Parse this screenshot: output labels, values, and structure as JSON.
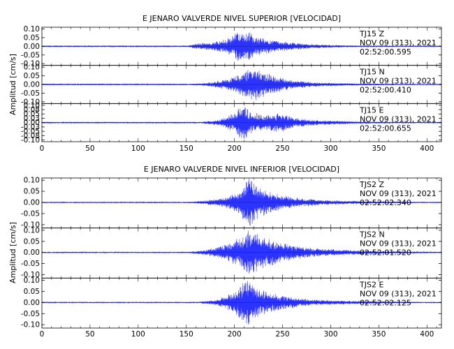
{
  "figure": {
    "colors": {
      "trace": "#2a33ff",
      "zero": "#000000",
      "frame": "#000000"
    }
  },
  "chart_data": [
    {
      "type": "line",
      "title": "E JENARO VALVERDE NIVEL SUPERIOR [VELOCIDAD]",
      "ylabel": "Amplitud [cm/s]",
      "xlabel": "",
      "xlim": [
        0,
        415
      ],
      "x_ticks": [
        0,
        50,
        100,
        150,
        200,
        250,
        300,
        350,
        400
      ],
      "x_tick_labels": [
        "0",
        "50",
        "100",
        "150",
        "200",
        "250",
        "300",
        "350",
        "400"
      ],
      "grid": false,
      "traces": [
        {
          "annotation": [
            "TJ15   Z",
            "NOV 09 (313), 2021",
            "02:52:00.595"
          ],
          "ylim": [
            -0.11,
            0.11
          ],
          "y_ticks": [
            0.1,
            0.05,
            0.0,
            -0.05,
            -0.1
          ],
          "y_tick_labels": [
            "0.10",
            "0.05",
            "0.00",
            "-0.05",
            "-0.10"
          ],
          "envelope": [
            {
              "t": 0,
              "a": 0.002
            },
            {
              "t": 150,
              "a": 0.002
            },
            {
              "t": 158,
              "a": 0.012
            },
            {
              "t": 175,
              "a": 0.022
            },
            {
              "t": 190,
              "a": 0.035
            },
            {
              "t": 200,
              "a": 0.06
            },
            {
              "t": 205,
              "a": 0.095
            },
            {
              "t": 210,
              "a": 0.06
            },
            {
              "t": 215,
              "a": 0.085
            },
            {
              "t": 220,
              "a": 0.05
            },
            {
              "t": 230,
              "a": 0.04
            },
            {
              "t": 250,
              "a": 0.025
            },
            {
              "t": 275,
              "a": 0.012
            },
            {
              "t": 320,
              "a": 0.005
            },
            {
              "t": 415,
              "a": 0.002
            }
          ]
        },
        {
          "annotation": [
            "TJ15   N",
            "NOV 09 (313), 2021",
            "02:52:00.410"
          ],
          "ylim": [
            -0.11,
            0.11
          ],
          "y_ticks": [
            0.1,
            0.05,
            0.0,
            -0.05,
            -0.1
          ],
          "y_tick_labels": [
            "0.10",
            "0.05",
            "0.00",
            "-0.05",
            "-0.10"
          ],
          "envelope": [
            {
              "t": 0,
              "a": 0.002
            },
            {
              "t": 150,
              "a": 0.002
            },
            {
              "t": 170,
              "a": 0.008
            },
            {
              "t": 195,
              "a": 0.03
            },
            {
              "t": 210,
              "a": 0.07
            },
            {
              "t": 220,
              "a": 0.085
            },
            {
              "t": 230,
              "a": 0.07
            },
            {
              "t": 245,
              "a": 0.04
            },
            {
              "t": 260,
              "a": 0.025
            },
            {
              "t": 280,
              "a": 0.012
            },
            {
              "t": 320,
              "a": 0.006
            },
            {
              "t": 415,
              "a": 0.002
            }
          ]
        },
        {
          "annotation": [
            "TJ15   E",
            "NOV 09 (313), 2021",
            "02:52:00.655"
          ],
          "ylim": [
            -0.11,
            0.11
          ],
          "y_ticks": [
            0.1,
            0.075,
            0.05,
            0.025,
            0.0,
            -0.025,
            -0.05,
            -0.075,
            -0.1
          ],
          "y_tick_labels": [
            "0.10",
            "0.08",
            "0.05",
            "0.03",
            "0.00",
            "-0.03",
            "-0.05",
            "-0.08",
            "-0.10"
          ],
          "envelope": [
            {
              "t": 0,
              "a": 0.002
            },
            {
              "t": 160,
              "a": 0.002
            },
            {
              "t": 185,
              "a": 0.015
            },
            {
              "t": 200,
              "a": 0.05
            },
            {
              "t": 210,
              "a": 0.1
            },
            {
              "t": 215,
              "a": 0.06
            },
            {
              "t": 230,
              "a": 0.04
            },
            {
              "t": 250,
              "a": 0.05
            },
            {
              "t": 260,
              "a": 0.03
            },
            {
              "t": 280,
              "a": 0.015
            },
            {
              "t": 330,
              "a": 0.006
            },
            {
              "t": 415,
              "a": 0.002
            }
          ]
        }
      ]
    },
    {
      "type": "line",
      "title": "E JENARO VALVERDE NIVEL INFERIOR [VELOCIDAD]",
      "ylabel": "Amplitud [cm/s]",
      "xlabel": "",
      "xlim": [
        0,
        415
      ],
      "x_ticks": [
        0,
        50,
        100,
        150,
        200,
        250,
        300,
        350,
        400
      ],
      "x_tick_labels": [
        "0",
        "50",
        "100",
        "150",
        "200",
        "250",
        "300",
        "350",
        "400"
      ],
      "grid": false,
      "traces": [
        {
          "annotation": [
            "TJS2   Z",
            "NOV 09 (313), 2021",
            "02:52:02.340"
          ],
          "ylim": [
            -0.115,
            0.11
          ],
          "y_ticks": [
            0.1,
            0.05,
            0.0,
            -0.05,
            -0.1
          ],
          "y_tick_labels": [
            "0.10",
            "0.05",
            "0.00",
            "-0.05",
            "-0.10"
          ],
          "envelope": [
            {
              "t": 0,
              "a": 0.002
            },
            {
              "t": 150,
              "a": 0.002
            },
            {
              "t": 170,
              "a": 0.008
            },
            {
              "t": 190,
              "a": 0.02
            },
            {
              "t": 205,
              "a": 0.05
            },
            {
              "t": 215,
              "a": 0.1
            },
            {
              "t": 225,
              "a": 0.06
            },
            {
              "t": 240,
              "a": 0.04
            },
            {
              "t": 260,
              "a": 0.022
            },
            {
              "t": 290,
              "a": 0.01
            },
            {
              "t": 340,
              "a": 0.005
            },
            {
              "t": 415,
              "a": 0.002
            }
          ]
        },
        {
          "annotation": [
            "TJS2   N",
            "NOV 09 (313), 2021",
            "02:52:01.520"
          ],
          "ylim": [
            -0.115,
            0.11
          ],
          "y_ticks": [
            0.1,
            0.05,
            0.0,
            -0.05,
            -0.1
          ],
          "y_tick_labels": [
            "0.10",
            "0.05",
            "0.00",
            "-0.05",
            "-0.10"
          ],
          "envelope": [
            {
              "t": 0,
              "a": 0.002
            },
            {
              "t": 150,
              "a": 0.002
            },
            {
              "t": 170,
              "a": 0.01
            },
            {
              "t": 190,
              "a": 0.03
            },
            {
              "t": 205,
              "a": 0.06
            },
            {
              "t": 215,
              "a": 0.1
            },
            {
              "t": 225,
              "a": 0.07
            },
            {
              "t": 240,
              "a": 0.05
            },
            {
              "t": 260,
              "a": 0.03
            },
            {
              "t": 290,
              "a": 0.015
            },
            {
              "t": 340,
              "a": 0.007
            },
            {
              "t": 415,
              "a": 0.003
            }
          ]
        },
        {
          "annotation": [
            "TJS2   E",
            "NOV 09 (313), 2021",
            "02:52:02.125"
          ],
          "ylim": [
            -0.115,
            0.11
          ],
          "y_ticks": [
            0.1,
            0.05,
            0.0,
            -0.05,
            -0.1
          ],
          "y_tick_labels": [
            "0.10",
            "0.05",
            "0.00",
            "-0.05",
            "-0.10"
          ],
          "envelope": [
            {
              "t": 0,
              "a": 0.002
            },
            {
              "t": 160,
              "a": 0.002
            },
            {
              "t": 180,
              "a": 0.01
            },
            {
              "t": 200,
              "a": 0.04
            },
            {
              "t": 212,
              "a": 0.1
            },
            {
              "t": 220,
              "a": 0.07
            },
            {
              "t": 235,
              "a": 0.04
            },
            {
              "t": 255,
              "a": 0.025
            },
            {
              "t": 280,
              "a": 0.012
            },
            {
              "t": 330,
              "a": 0.006
            },
            {
              "t": 415,
              "a": 0.002
            }
          ]
        }
      ]
    }
  ]
}
